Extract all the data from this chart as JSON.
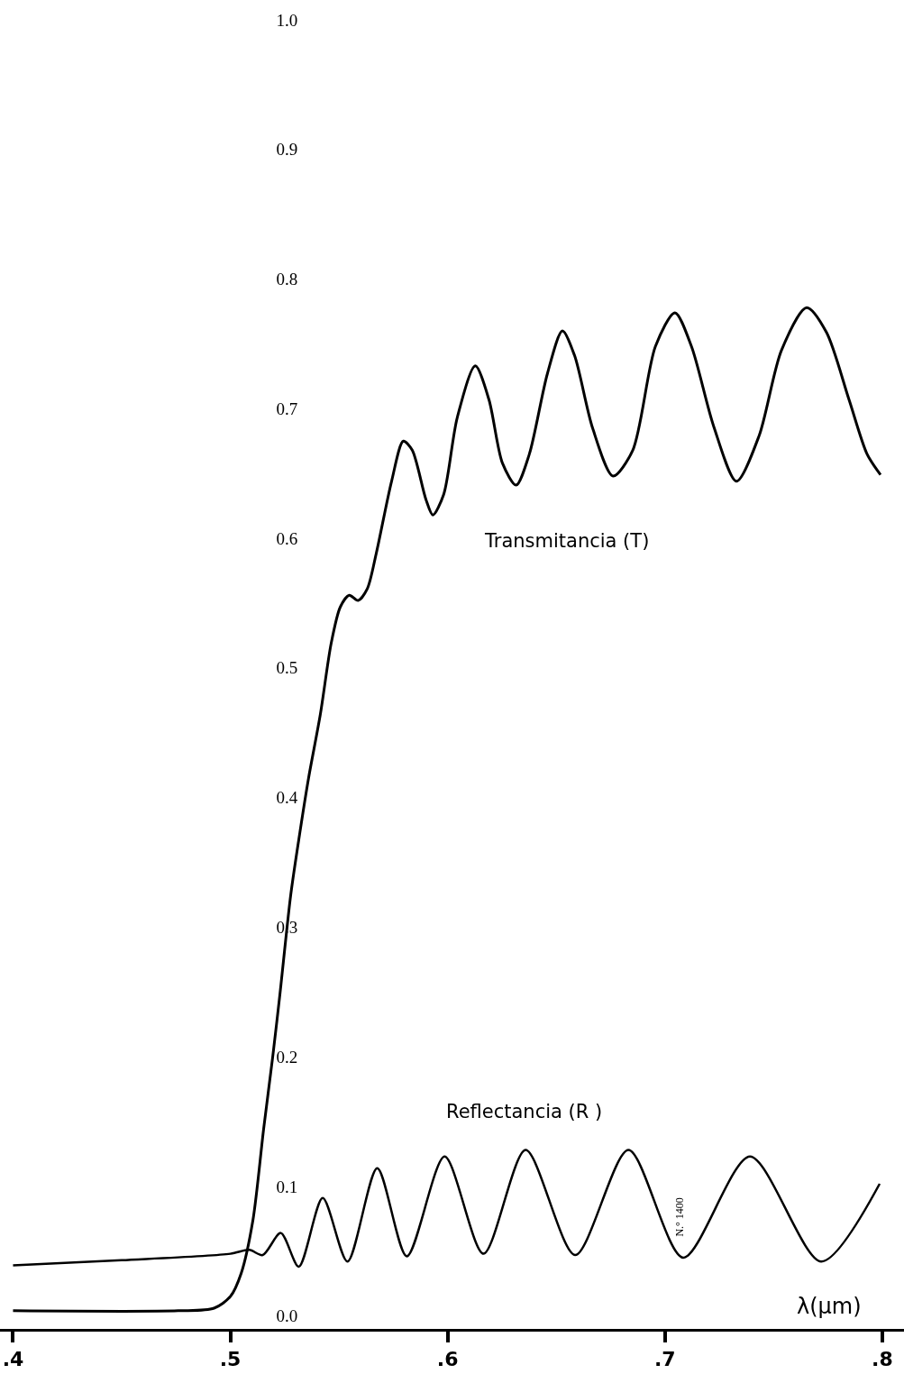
{
  "chart_data": {
    "type": "line",
    "xlabel": "λ(μm)",
    "xlim": [
      0.394,
      0.81
    ],
    "ylim": [
      -0.01,
      1.0
    ],
    "xticks": [
      {
        "value": 0.4,
        "label": ".4"
      },
      {
        "value": 0.5,
        "label": ".5"
      },
      {
        "value": 0.6,
        "label": ".6"
      },
      {
        "value": 0.7,
        "label": ".7"
      },
      {
        "value": 0.8,
        "label": ".8"
      }
    ],
    "yticks": [
      {
        "value": 0,
        "label": "0.0"
      },
      {
        "value": 0.1,
        "label": "0.1"
      },
      {
        "value": 0.2,
        "label": "0.2"
      },
      {
        "value": 0.3,
        "label": "0.3"
      },
      {
        "value": 0.4,
        "label": "0.4"
      },
      {
        "value": 0.5,
        "label": "0.5"
      },
      {
        "value": 0.6,
        "label": "0.6"
      },
      {
        "value": 0.7,
        "label": "0.7"
      },
      {
        "value": 0.8,
        "label": "0.8"
      },
      {
        "value": 0.9,
        "label": "0.9"
      },
      {
        "value": 1.0,
        "label": "1.0"
      }
    ],
    "marker": "none",
    "line_style": "solid",
    "legend": false,
    "series": [
      {
        "name": "Transmitancia (T)",
        "color": "#000000",
        "x": [
          0.4,
          0.476,
          0.4925,
          0.5,
          0.505,
          0.5104,
          0.5153,
          0.5195,
          0.5228,
          0.5278,
          0.532,
          0.536,
          0.5414,
          0.5464,
          0.5506,
          0.5547,
          0.5588,
          0.563,
          0.5671,
          0.5742,
          0.5796,
          0.5837,
          0.59,
          0.5932,
          0.5982,
          0.6044,
          0.6127,
          0.619,
          0.6252,
          0.6315,
          0.6376,
          0.6459,
          0.6528,
          0.6584,
          0.6667,
          0.6761,
          0.6852,
          0.6956,
          0.7046,
          0.7122,
          0.7225,
          0.7329,
          0.7433,
          0.7536,
          0.7652,
          0.7743,
          0.7847,
          0.793,
          0.7992
        ],
        "values": [
          0.004,
          0.004,
          0.006,
          0.015,
          0.033,
          0.074,
          0.144,
          0.2,
          0.248,
          0.325,
          0.373,
          0.415,
          0.464,
          0.519,
          0.547,
          0.556,
          0.552,
          0.561,
          0.588,
          0.644,
          0.675,
          0.668,
          0.63,
          0.618,
          0.634,
          0.693,
          0.733,
          0.707,
          0.658,
          0.641,
          0.665,
          0.727,
          0.76,
          0.741,
          0.685,
          0.648,
          0.668,
          0.748,
          0.774,
          0.748,
          0.686,
          0.644,
          0.679,
          0.745,
          0.778,
          0.759,
          0.707,
          0.665,
          0.649
        ]
      },
      {
        "name": "Reflectancia (R )",
        "color": "#000000",
        "x": [
          0.4,
          0.45,
          0.5,
          0.5087,
          0.5149,
          0.5232,
          0.5315,
          0.5425,
          0.5539,
          0.5676,
          0.5812,
          0.5986,
          0.6165,
          0.6359,
          0.6587,
          0.6832,
          0.7084,
          0.7391,
          0.7719,
          0.7988
        ],
        "values": [
          0.039,
          0.043,
          0.048,
          0.051,
          0.047,
          0.064,
          0.038,
          0.091,
          0.042,
          0.114,
          0.046,
          0.123,
          0.048,
          0.128,
          0.047,
          0.128,
          0.045,
          0.123,
          0.042,
          0.102
        ]
      }
    ],
    "annotations": [
      "N.° 1400"
    ]
  }
}
